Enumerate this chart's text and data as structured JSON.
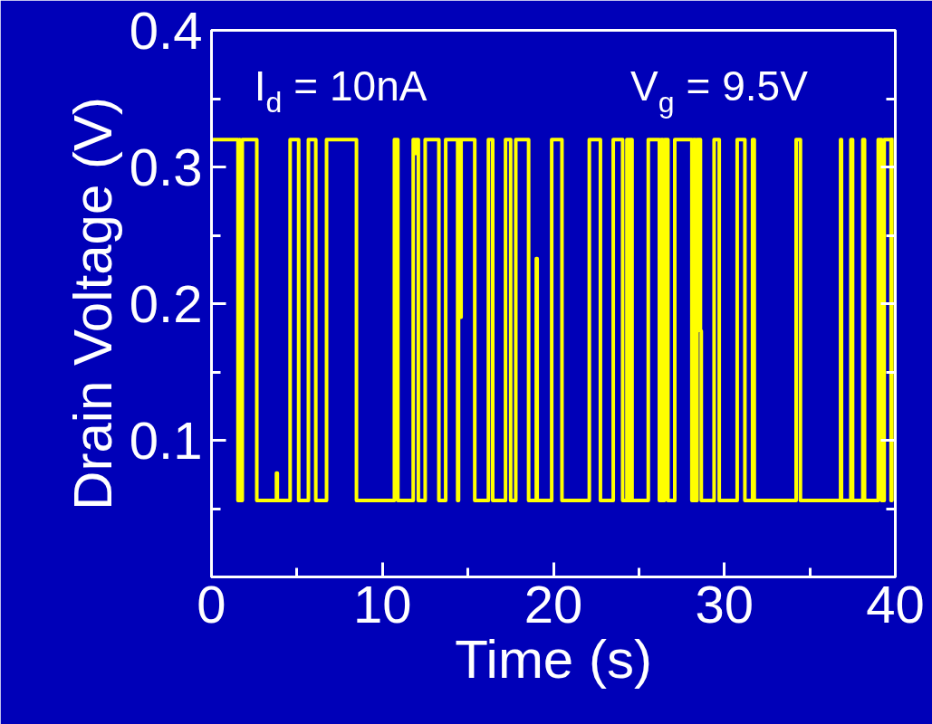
{
  "chart_data": {
    "type": "step",
    "xlabel": "Time (s)",
    "ylabel": "Drain Voltage (V)",
    "annotations": [
      "I$_{d}$ = 10nA",
      "V$_{g}$ = 9.5V"
    ],
    "xlim": [
      0,
      40
    ],
    "xticks": [
      0,
      {
        "value": 5,
        "label": null
      },
      10,
      {
        "value": 15,
        "label": null
      },
      20,
      {
        "value": 25,
        "label": null
      },
      30,
      {
        "value": 35,
        "label": null
      },
      40
    ],
    "ylim": [
      0,
      0.4
    ],
    "yticks": [
      {
        "value": 0,
        "label": null
      },
      {
        "value": 0.05,
        "label": null
      },
      0.1,
      {
        "value": 0.15,
        "label": null
      },
      0.2,
      {
        "value": 0.25,
        "label": null
      },
      0.3,
      {
        "value": 0.35,
        "label": null
      },
      0.4
    ],
    "series": [
      {
        "color": "#ffff00",
        "x": [
          0,
          1.55,
          1.62,
          1.66,
          1.8,
          2.65,
          3.8,
          3.85,
          4.6,
          5.1,
          5.67,
          6.1,
          6.73,
          8.48,
          10.7,
          10.9,
          11.8,
          11.9,
          11.95,
          12.1,
          12.5,
          13.3,
          13.7,
          14.4,
          14.45,
          14.55,
          14.6,
          15.4,
          16.2,
          16.45,
          17.2,
          17.5,
          17.8,
          18.55,
          19.0,
          19.05,
          19.9,
          20.5,
          22.1,
          22.75,
          23.5,
          24.05,
          24.3,
          24.4,
          24.45,
          24.6,
          25.55,
          26.2,
          26.3,
          26.4,
          26.5,
          26.7,
          27.1,
          28.1,
          28.2,
          28.3,
          28.4,
          28.6,
          28.65,
          29.4,
          29.7,
          30.75,
          31.2,
          31.65,
          31.75,
          34.2,
          34.45,
          36.8,
          36.85,
          37.4,
          37.5,
          38.1,
          38.2,
          39.0,
          39.2,
          39.35,
          39.75,
          39.8,
          39.9
        ],
        "values": [
          0.32,
          0.056,
          0.32,
          0.056,
          0.32,
          0.056,
          0.076,
          0.056,
          0.32,
          0.056,
          0.32,
          0.056,
          0.32,
          0.056,
          0.32,
          0.056,
          0.32,
          0.31,
          0.32,
          0.056,
          0.32,
          0.056,
          0.32,
          0.056,
          0.32,
          0.19,
          0.32,
          0.056,
          0.32,
          0.056,
          0.32,
          0.056,
          0.32,
          0.056,
          0.233,
          0.056,
          0.32,
          0.056,
          0.32,
          0.056,
          0.32,
          0.056,
          0.32,
          0.056,
          0.32,
          0.056,
          0.32,
          0.056,
          0.32,
          0.056,
          0.32,
          0.056,
          0.32,
          0.056,
          0.32,
          0.056,
          0.32,
          0.18,
          0.056,
          0.32,
          0.056,
          0.32,
          0.056,
          0.32,
          0.056,
          0.32,
          0.056,
          0.32,
          0.056,
          0.32,
          0.056,
          0.32,
          0.056,
          0.32,
          0.056,
          0.32,
          0.056,
          0.32,
          0.32
        ]
      }
    ]
  }
}
